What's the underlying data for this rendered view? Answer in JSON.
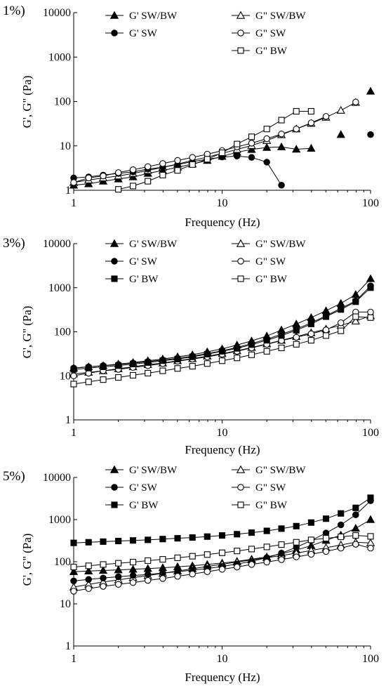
{
  "chart_data": [
    {
      "type": "scatter",
      "panel_label": "1%)",
      "xlabel": "Frequency (Hz)",
      "ylabel": "G', G'' (Pa)",
      "xscale": "log",
      "yscale": "log",
      "xlim": [
        1,
        100
      ],
      "ylim": [
        1,
        10000
      ],
      "x_ticks": [
        "1",
        "10",
        "100"
      ],
      "y_ticks": [
        "1",
        "10",
        "100",
        "1000",
        "10000"
      ],
      "grid": false,
      "legend_position": "top, two columns",
      "series": [
        {
          "name": "G' SW/BW",
          "marker": "triangle",
          "fill": "filled",
          "x": [
            1,
            1.26,
            1.58,
            2,
            2.51,
            3.16,
            3.98,
            5.01,
            6.31,
            7.94,
            10,
            12.6,
            15.8,
            20,
            25.1,
            31.6,
            39.8,
            63.1,
            100
          ],
          "y": [
            1.3,
            1.4,
            1.6,
            1.8,
            2.0,
            2.4,
            2.8,
            3.3,
            3.9,
            4.7,
            5.8,
            7.2,
            8.3,
            9.2,
            9.5,
            8.4,
            8.8,
            18,
            170
          ]
        },
        {
          "name": "G\" SW/BW",
          "marker": "triangle",
          "fill": "open",
          "x": [
            1,
            1.26,
            1.58,
            2,
            2.51,
            3.16,
            3.98,
            5.01,
            6.31,
            7.94,
            10,
            12.6,
            15.8,
            20,
            25.1,
            31.6,
            39.8,
            50.1,
            63.1,
            79.4
          ],
          "y": [
            1.5,
            1.7,
            1.9,
            2.1,
            2.4,
            2.8,
            3.3,
            3.9,
            4.7,
            5.6,
            6.8,
            8.3,
            10.2,
            13.2,
            17.8,
            24,
            32,
            44,
            63,
            95
          ]
        },
        {
          "name": "G' SW",
          "marker": "circle",
          "fill": "filled",
          "x": [
            1,
            1.26,
            1.58,
            2,
            2.51,
            3.16,
            3.98,
            5.01,
            6.31,
            7.94,
            10,
            12.6,
            15.8,
            20,
            25.1,
            100
          ],
          "y": [
            1.9,
            2.0,
            2.2,
            2.4,
            2.6,
            3.0,
            3.3,
            3.8,
            4.4,
            5.0,
            5.6,
            5.9,
            5.5,
            4.3,
            1.3,
            18
          ]
        },
        {
          "name": "G\" SW",
          "marker": "circle",
          "fill": "open",
          "x": [
            1,
            1.26,
            1.58,
            2,
            2.51,
            3.16,
            3.98,
            5.01,
            6.31,
            7.94,
            10,
            12.6,
            15.8,
            20,
            25.1,
            31.6,
            39.8,
            50.1,
            79.4
          ],
          "y": [
            1.5,
            1.9,
            2.1,
            2.5,
            2.9,
            3.4,
            4.0,
            4.7,
            5.5,
            6.5,
            7.8,
            9.5,
            11.5,
            14.5,
            18.5,
            24,
            33,
            46,
            97
          ]
        },
        {
          "name": "G\" BW",
          "marker": "square",
          "fill": "open",
          "x": [
            1.26,
            1.58,
            2,
            2.51,
            3.16,
            3.98,
            5.01,
            6.31,
            7.94,
            10,
            12.6,
            15.8,
            20,
            25.1,
            31.6,
            39.8
          ],
          "y": [
            0.75,
            0.9,
            1.05,
            1.25,
            1.6,
            2.2,
            2.8,
            3.8,
            5.0,
            7.0,
            11,
            16,
            24,
            38,
            60,
            60
          ]
        }
      ]
    },
    {
      "type": "line",
      "panel_label": "3%)",
      "xlabel": "Frequency (Hz)",
      "ylabel": "G', G'' (Pa)",
      "xscale": "log",
      "yscale": "log",
      "xlim": [
        1,
        100
      ],
      "ylim": [
        1,
        10000
      ],
      "x_ticks": [
        "1",
        "10",
        "100"
      ],
      "y_ticks": [
        "1",
        "10",
        "100",
        "1000",
        "10000"
      ],
      "grid": false,
      "legend_position": "top, two columns",
      "x": [
        1,
        1.26,
        1.58,
        2,
        2.51,
        3.16,
        3.98,
        5.01,
        6.31,
        7.94,
        10,
        12.6,
        15.8,
        20,
        25.1,
        31.6,
        39.8,
        50.1,
        63.1,
        79.4,
        100
      ],
      "series": [
        {
          "name": "G' SW/BW",
          "marker": "triangle",
          "fill": "filled",
          "y": [
            15,
            16,
            17,
            18.5,
            20,
            22,
            24,
            27,
            30,
            35,
            41,
            50,
            62,
            80,
            110,
            150,
            210,
            300,
            440,
            700,
            1600
          ]
        },
        {
          "name": "G\" SW/BW",
          "marker": "triangle",
          "fill": "open",
          "y": [
            11,
            12,
            13,
            14.5,
            16,
            18,
            19.5,
            22,
            24.5,
            28,
            32,
            37,
            44,
            53,
            64,
            78,
            95,
            115,
            140,
            175,
            230
          ]
        },
        {
          "name": "G' SW",
          "marker": "circle",
          "fill": "filled",
          "y": [
            15,
            16,
            17,
            18,
            19.5,
            21,
            23,
            25,
            28,
            32,
            37,
            44,
            54,
            68,
            88,
            115,
            160,
            230,
            340,
            500,
            1100
          ]
        },
        {
          "name": "G\" SW",
          "marker": "circle",
          "fill": "open",
          "y": [
            10,
            11.5,
            13,
            14,
            15.5,
            17,
            19,
            21.5,
            24,
            27,
            31,
            36,
            43,
            52,
            63,
            75,
            90,
            110,
            160,
            280,
            280
          ]
        },
        {
          "name": "G' BW",
          "marker": "square",
          "fill": "filled",
          "y": [
            14,
            15,
            16,
            17,
            18.5,
            20,
            22,
            24,
            27,
            31,
            36,
            42,
            51,
            64,
            82,
            108,
            150,
            220,
            320,
            480,
            1000
          ]
        },
        {
          "name": "G\" BW",
          "marker": "square",
          "fill": "open",
          "y": [
            6.5,
            7.3,
            8.2,
            9.2,
            10.3,
            11.5,
            13,
            14.7,
            16.5,
            19,
            22,
            25.5,
            30,
            36,
            43,
            52,
            64,
            82,
            105,
            220,
            210
          ]
        }
      ]
    },
    {
      "type": "line",
      "panel_label": "5%)",
      "xlabel": "Frequency (Hz)",
      "ylabel": "G', G'' (Pa)",
      "xscale": "log",
      "yscale": "log",
      "xlim": [
        1,
        100
      ],
      "ylim": [
        1,
        10000
      ],
      "x_ticks": [
        "1",
        "10",
        "100"
      ],
      "y_ticks": [
        "1",
        "10",
        "100",
        "1000",
        "10000"
      ],
      "grid": false,
      "legend_position": "top, two columns",
      "x": [
        1,
        1.26,
        1.58,
        2,
        2.51,
        3.16,
        3.98,
        5.01,
        6.31,
        7.94,
        10,
        12.6,
        15.8,
        20,
        25.1,
        31.6,
        39.8,
        50.1,
        63.1,
        79.4,
        100
      ],
      "series": [
        {
          "name": "G' SW/BW",
          "marker": "triangle",
          "fill": "filled",
          "y": [
            58,
            60,
            62,
            64,
            66,
            69,
            72,
            76,
            80,
            86,
            93,
            102,
            115,
            130,
            155,
            190,
            240,
            320,
            430,
            620,
            1000
          ]
        },
        {
          "name": "G\" SW/BW",
          "marker": "triangle",
          "fill": "open",
          "y": [
            25,
            29,
            33,
            37,
            42,
            47,
            53,
            60,
            68,
            77,
            87,
            98,
            110,
            125,
            140,
            160,
            185,
            215,
            250,
            290,
            280
          ]
        },
        {
          "name": "G' SW",
          "marker": "circle",
          "fill": "filled",
          "y": [
            35,
            38,
            41,
            44,
            47,
            50,
            54,
            58,
            63,
            69,
            77,
            88,
            102,
            125,
            160,
            220,
            320,
            480,
            750,
            1300,
            2800
          ]
        },
        {
          "name": "G\" SW",
          "marker": "circle",
          "fill": "open",
          "y": [
            20,
            23,
            26,
            29,
            32,
            36,
            40,
            45,
            51,
            58,
            66,
            75,
            86,
            98,
            112,
            130,
            150,
            175,
            210,
            260,
            210
          ]
        },
        {
          "name": "G' BW",
          "marker": "square",
          "fill": "filled",
          "y": [
            280,
            290,
            300,
            310,
            320,
            330,
            345,
            360,
            375,
            395,
            420,
            450,
            490,
            540,
            610,
            700,
            850,
            1050,
            1400,
            1900,
            3300
          ]
        },
        {
          "name": "G\" BW",
          "marker": "square",
          "fill": "open",
          "y": [
            75,
            80,
            86,
            92,
            98,
            106,
            114,
            124,
            135,
            148,
            163,
            180,
            200,
            225,
            255,
            290,
            330,
            360,
            390,
            420,
            400
          ]
        }
      ]
    }
  ]
}
